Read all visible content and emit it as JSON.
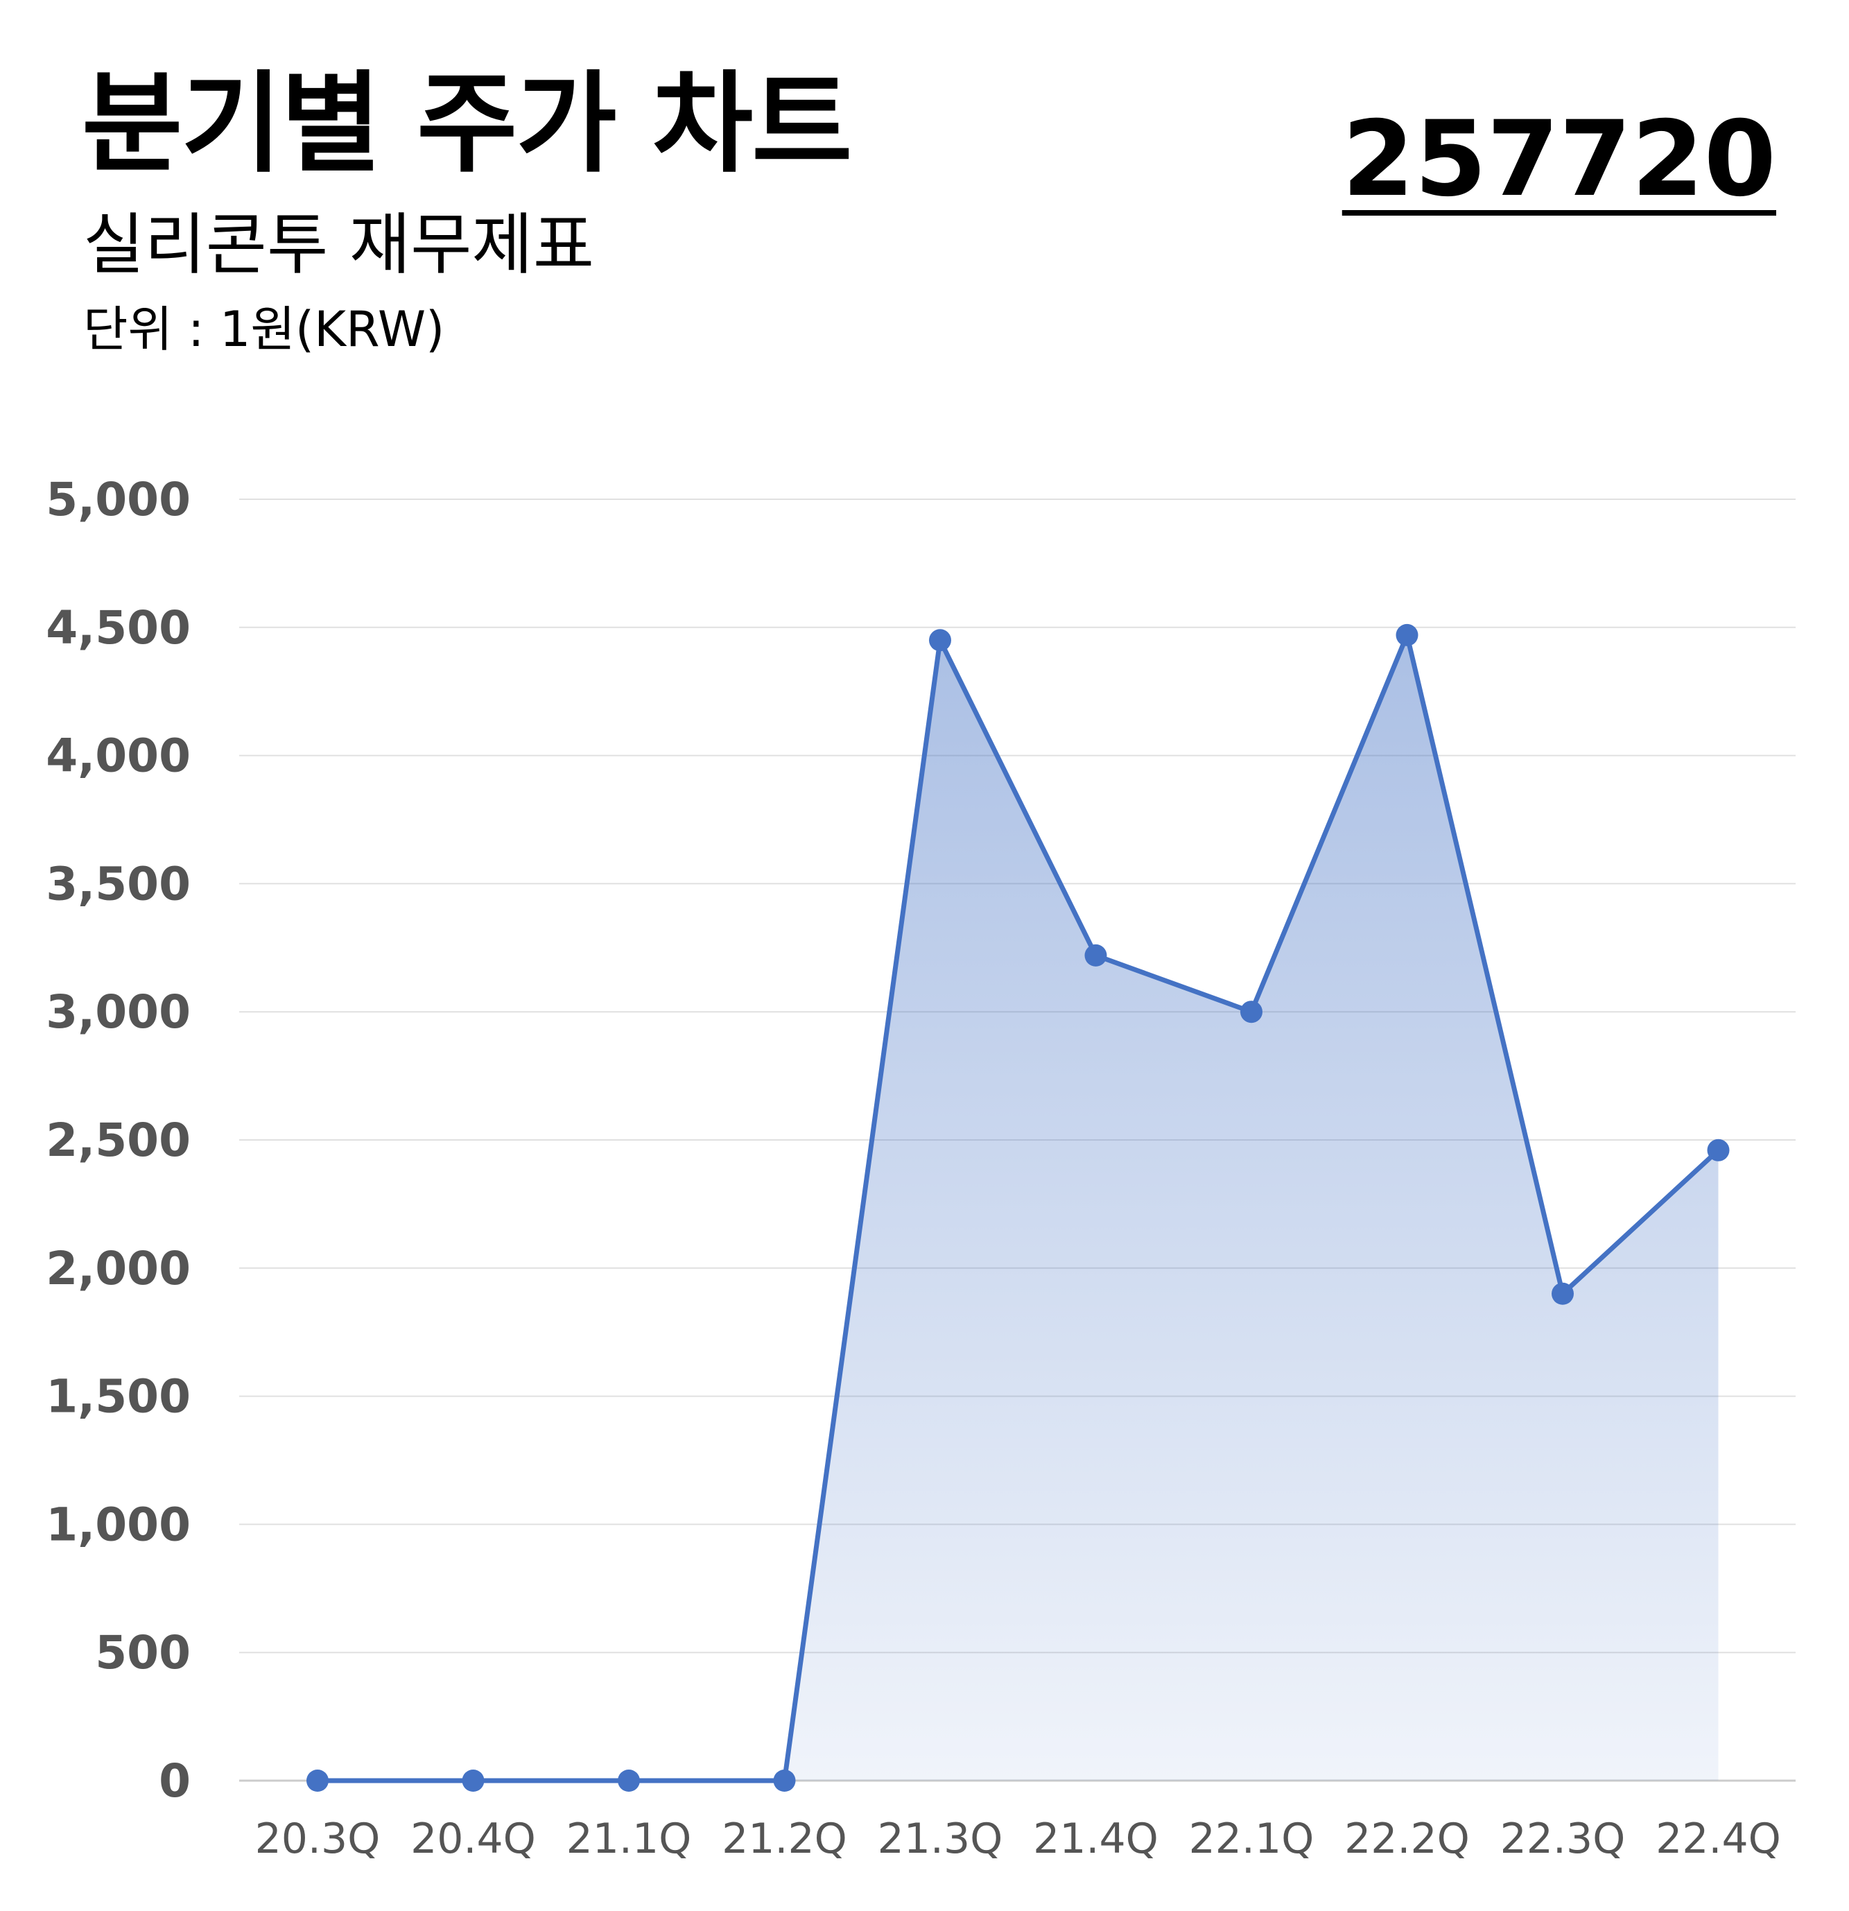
{
  "header": {
    "title": "분기별 주가 차트",
    "subtitle": "실리콘투 재무제표",
    "unit": "단위 : 1원(KRW)",
    "code": "257720"
  },
  "colors": {
    "line": "#4472C4",
    "fill": "#4472C4",
    "grid": "#E0E0E0",
    "tick": "#555555"
  },
  "chart_data": {
    "type": "area",
    "title": "분기별 주가 차트",
    "categories": [
      "20.3Q",
      "20.4Q",
      "21.1Q",
      "21.2Q",
      "21.3Q",
      "21.4Q",
      "22.1Q",
      "22.2Q",
      "22.3Q",
      "22.4Q"
    ],
    "series": [
      {
        "values": [
          0,
          0,
          0,
          0,
          4450,
          3220,
          3000,
          4470,
          1900,
          2460
        ]
      }
    ],
    "ylim": [
      0,
      5000
    ],
    "yticks": [
      0,
      500,
      1000,
      1500,
      2000,
      2500,
      3000,
      3500,
      4000,
      4500,
      5000
    ],
    "ytick_labels": [
      "0",
      "500",
      "1,000",
      "1,500",
      "2,000",
      "2,500",
      "3,000",
      "3,500",
      "4,000",
      "4,500",
      "5,000"
    ],
    "grid": true,
    "legend": "none"
  }
}
